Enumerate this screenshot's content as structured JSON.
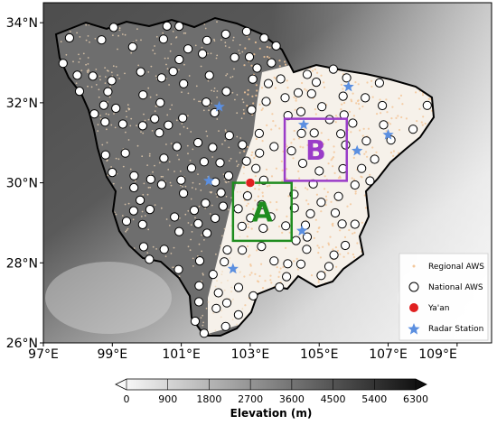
{
  "map": {
    "lat_ticks": [
      "26°N",
      "28°N",
      "30°N",
      "32°N",
      "34°N"
    ],
    "lon_ticks": [
      "97°E",
      "99°E",
      "101°E",
      "103°E",
      "105°E",
      "107°E",
      "109°E"
    ],
    "lon_range": [
      97,
      110
    ],
    "lat_range": [
      26,
      34.5
    ],
    "boxes": [
      {
        "label": "A",
        "lon": [
          102.5,
          104.2
        ],
        "lat": [
          28.55,
          30.0
        ],
        "color": "#1e8c1e"
      },
      {
        "label": "B",
        "lon": [
          104.0,
          105.8
        ],
        "lat": [
          30.05,
          31.6
        ],
        "color": "#9a3cc8"
      }
    ],
    "yaan_marker": {
      "lon": 103.0,
      "lat": 30.0,
      "color": "#e02020"
    },
    "radar_stations": [
      {
        "lon": 102.1,
        "lat": 31.9
      },
      {
        "lon": 101.8,
        "lat": 30.05
      },
      {
        "lon": 102.5,
        "lat": 27.85
      },
      {
        "lon": 104.55,
        "lat": 31.45
      },
      {
        "lon": 104.5,
        "lat": 28.8
      },
      {
        "lon": 105.85,
        "lat": 32.4
      },
      {
        "lon": 106.1,
        "lat": 30.8
      },
      {
        "lon": 107.0,
        "lat": 31.2
      }
    ],
    "radar_color": "#5b8fe0",
    "regional_aws_color": "#f3c79a"
  },
  "legend": {
    "items": [
      {
        "name": "legend-regional-aws",
        "label": "Regional AWS",
        "symbol": "dot"
      },
      {
        "name": "legend-national-aws",
        "label": "National AWS",
        "symbol": "circle"
      },
      {
        "name": "legend-yaan",
        "label": "Ya'an",
        "symbol": "red"
      },
      {
        "name": "legend-radar-station",
        "label": "Radar Station",
        "symbol": "star"
      }
    ]
  },
  "colorbar": {
    "title": "Elevation (m)",
    "ticks": [
      "0",
      "900",
      "1800",
      "2700",
      "3600",
      "4500",
      "5400",
      "6300"
    ],
    "min": 0,
    "max": 6300
  }
}
